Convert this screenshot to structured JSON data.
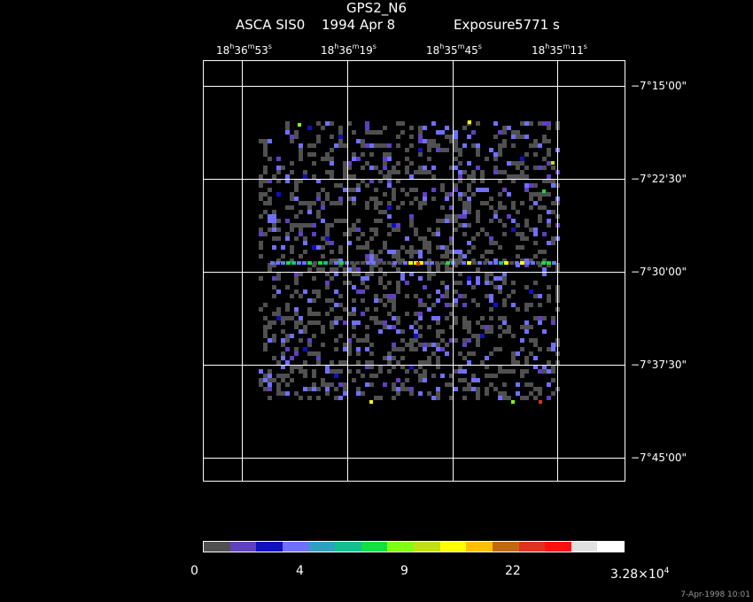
{
  "header": {
    "object": "GPS2_N6",
    "instrument": "ASCA SIS0",
    "date": "1994 Apr  8",
    "exposure_label": "Exposure:",
    "exposure_value": "5771 s"
  },
  "ra_labels": [
    {
      "h": "18",
      "hu": "h",
      "m": "36",
      "mu": "m",
      "s": "53",
      "su": "s"
    },
    {
      "h": "18",
      "hu": "h",
      "m": "36",
      "mu": "m",
      "s": "19",
      "su": "s"
    },
    {
      "h": "18",
      "hu": "h",
      "m": "35",
      "mu": "m",
      "s": "45",
      "su": "s"
    },
    {
      "h": "18",
      "hu": "h",
      "m": "35",
      "mu": "m",
      "s": "11",
      "su": "s"
    }
  ],
  "dec_labels": [
    "−7°15'00\"",
    "−7°22'30\"",
    "−7°30'00\"",
    "−7°37'30\"",
    "−7°45'00\""
  ],
  "colorbar": {
    "colors": [
      "#505050",
      "#6040c0",
      "#1010c0",
      "#7070ff",
      "#30a0c0",
      "#10c090",
      "#10e040",
      "#80ff10",
      "#c0e010",
      "#ffff00",
      "#ffc000",
      "#c06810",
      "#e03020",
      "#ff1010",
      "#e0e0e0",
      "#ffffff"
    ],
    "ticks": [
      "0",
      "4",
      "9",
      "22"
    ],
    "max_mantissa": "3.28×10",
    "max_exp": "4"
  },
  "timestamp": "7-Apr-1998 10:01"
}
